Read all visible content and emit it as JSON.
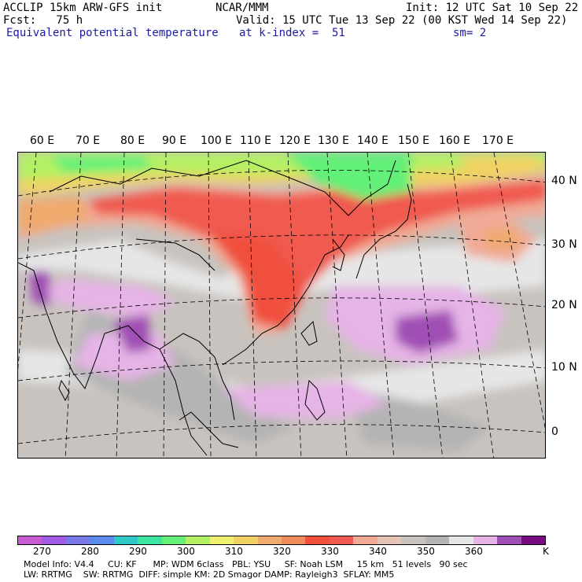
{
  "header": {
    "line1_left": "ACCLIP 15km ARW-GFS init",
    "line1_center": "NCAR/MMM",
    "line1_right": "Init: 12 UTC Sat 10 Sep 22",
    "line2_left": "Fcst:   75 h",
    "line2_right": "Valid: 15 UTC Tue 13 Sep 22 (00 KST Wed 14 Sep 22)",
    "line3_left": "Equivalent potential temperature",
    "line3_mid": "at k-index =  51",
    "line3_right": "sm= 2"
  },
  "map": {
    "lon_labels": [
      "60 E",
      "70 E",
      "80 E",
      "90 E",
      "100 E",
      "110 E",
      "120 E",
      "130 E",
      "140 E",
      "150 E",
      "160 E",
      "170 E"
    ],
    "lat_labels": [
      "40 N",
      "30 N",
      "20 N",
      "10 N",
      "0"
    ]
  },
  "colorbar": {
    "colors": [
      "#c85ad2",
      "#a05ae6",
      "#7a78e6",
      "#5a8cf0",
      "#2ec8c8",
      "#3ce6a0",
      "#64f078",
      "#b4f064",
      "#f0f06e",
      "#f0d264",
      "#f0aa6e",
      "#f08c5a",
      "#f0503c",
      "#f05a50",
      "#f0aa96",
      "#e6c3b4",
      "#c8c3be",
      "#b4b4b4",
      "#e6e6e6",
      "#e6b4e6",
      "#a050b4",
      "#780a82"
    ],
    "labels": [
      "270",
      "280",
      "290",
      "300",
      "310",
      "320",
      "330",
      "340",
      "350",
      "360"
    ],
    "unit": "K"
  },
  "footer": {
    "line1": "Model Info: V4.4     CU: KF      MP: WDM 6class   PBL: YSU     SF: Noah LSM     15 km   51 levels   90 sec",
    "line2": "LW: RRTMG    SW: RRTMG  DIFF: simple KM: 2D Smagor DAMP: Rayleigh3  SFLAY: MM5"
  }
}
